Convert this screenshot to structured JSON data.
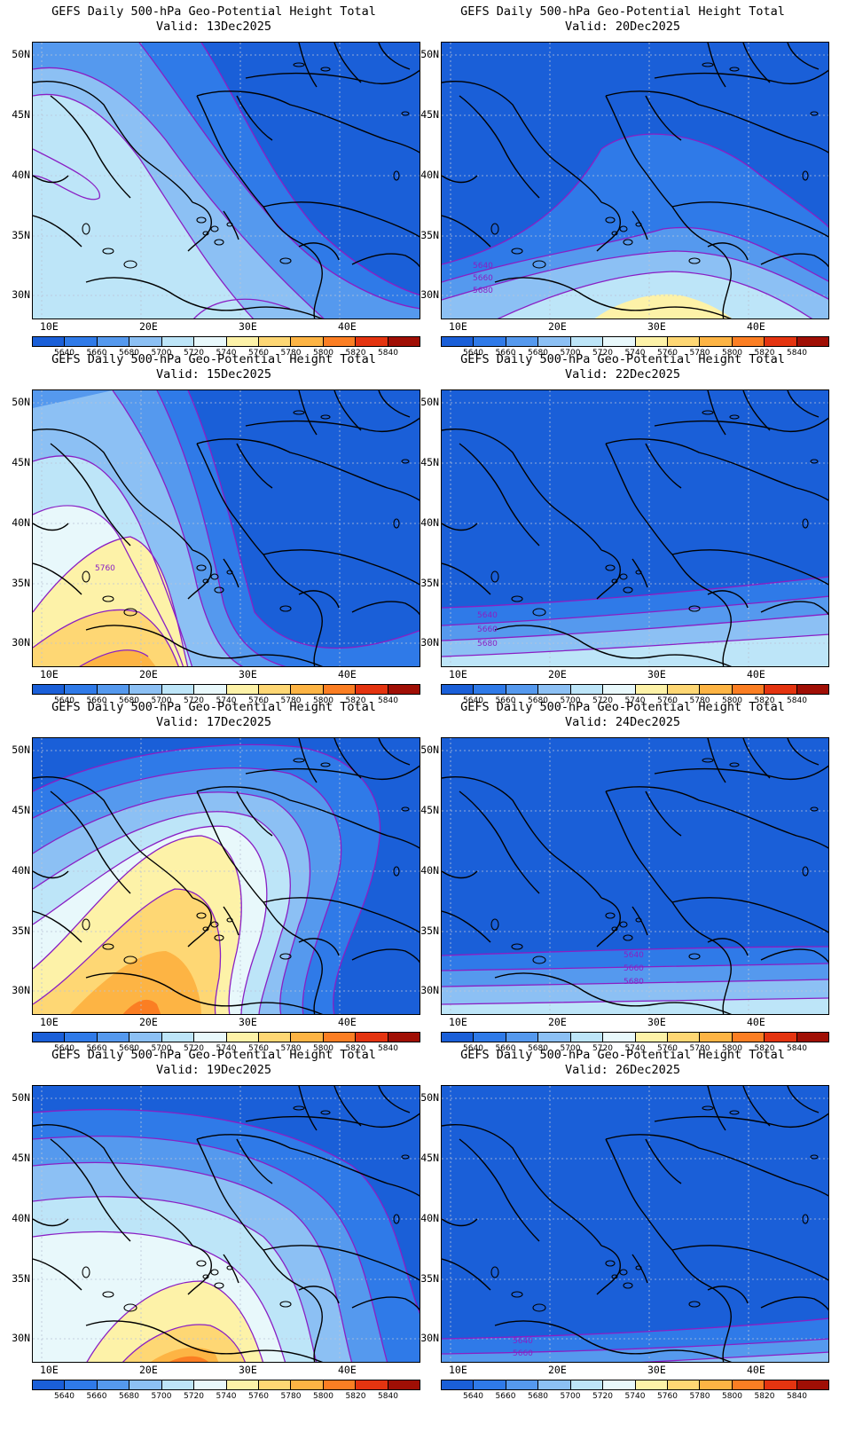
{
  "colorbar": {
    "labels": [
      "5640",
      "5660",
      "5680",
      "5700",
      "5720",
      "5740",
      "5760",
      "5780",
      "5800",
      "5820",
      "5840"
    ],
    "colors": [
      "#1a5fd8",
      "#2f7ae8",
      "#5599ee",
      "#8cc0f4",
      "#bde5f8",
      "#e8f8fb",
      "#fdf2a8",
      "#fed774",
      "#fdb444",
      "#fb7e23",
      "#e43410",
      "#a00f05"
    ]
  },
  "axes": {
    "lat_labels": [
      "50N",
      "45N",
      "40N",
      "35N",
      "30N"
    ],
    "lon_labels": [
      "10E",
      "20E",
      "30E",
      "40E"
    ]
  },
  "panels": [
    {
      "title": "GEFS Daily 500-hPa Geo-Potential Height Total",
      "valid": "Valid: 13Dec2025",
      "pattern": "ridge-west-weak",
      "contour_labels": []
    },
    {
      "title": "GEFS Daily 500-hPa Geo-Potential Height Total",
      "valid": "Valid: 20Dec2025",
      "pattern": "trough-south-ridge",
      "contour_labels": [
        "5640",
        "5660",
        "5680"
      ]
    },
    {
      "title": "GEFS Daily 500-hPa Geo-Potential Height Total",
      "valid": "Valid: 15Dec2025",
      "pattern": "ridge-southwest",
      "contour_labels": [
        "5760"
      ]
    },
    {
      "title": "GEFS Daily 500-hPa Geo-Potential Height Total",
      "valid": "Valid: 22Dec2025",
      "pattern": "deep-trough-band",
      "contour_labels": [
        "5640",
        "5660",
        "5680"
      ]
    },
    {
      "title": "GEFS Daily 500-hPa Geo-Potential Height Total",
      "valid": "Valid: 17Dec2025",
      "pattern": "ridge-central-strong",
      "contour_labels": []
    },
    {
      "title": "GEFS Daily 500-hPa Geo-Potential Height Total",
      "valid": "Valid: 24Dec2025",
      "pattern": "deep-trough-band-low",
      "contour_labels": [
        "5640",
        "5660",
        "5680"
      ]
    },
    {
      "title": "GEFS Daily 500-hPa Geo-Potential Height Total",
      "valid": "Valid: 19Dec2025",
      "pattern": "ridge-south-broad",
      "contour_labels": []
    },
    {
      "title": "GEFS Daily 500-hPa Geo-Potential Height Total",
      "valid": "Valid: 26Dec2025",
      "pattern": "deep-trough-edge",
      "contour_labels": [
        "5640",
        "5660"
      ]
    }
  ]
}
